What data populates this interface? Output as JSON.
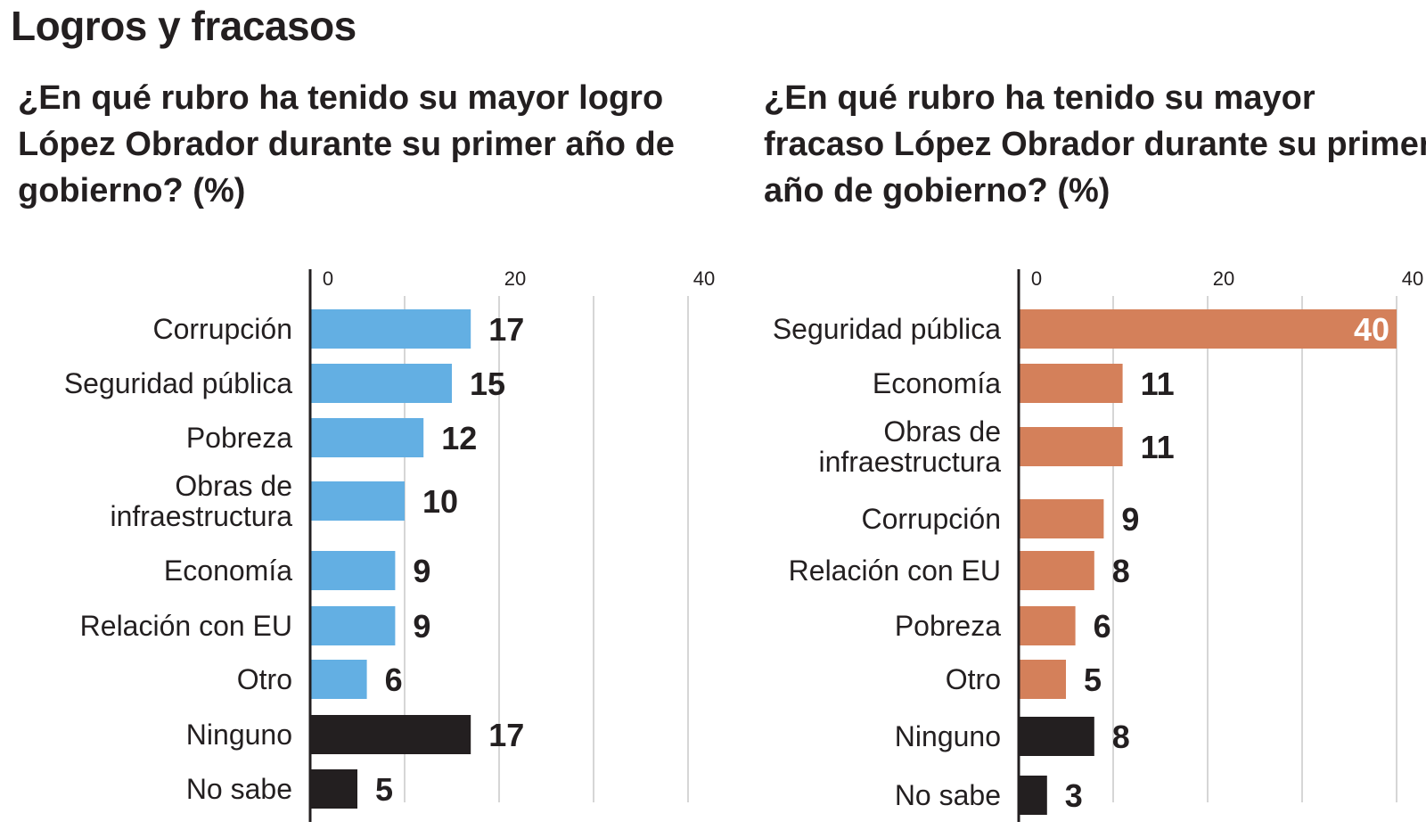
{
  "title": "Logros y fracasos",
  "colors": {
    "logro": "#63afe3",
    "fracaso": "#d4805a",
    "neutral": "#231f20",
    "grid": "#c8c8c8"
  },
  "chart_data": [
    {
      "type": "bar",
      "orientation": "horizontal",
      "title": "¿En qué rubro ha tenido su mayor logro López Obrador durante su primer año de gobierno? (%)",
      "xlim": [
        0,
        40
      ],
      "xticks": [
        "0",
        "20",
        "40"
      ],
      "grid": true,
      "categories": [
        [
          "Corrupción"
        ],
        [
          "Seguridad pública"
        ],
        [
          "Pobreza"
        ],
        [
          "Obras de",
          "infraestructura"
        ],
        [
          "Economía"
        ],
        [
          "Relación con EU"
        ],
        [
          "Otro"
        ],
        [
          "Ninguno"
        ],
        [
          "No sabe"
        ]
      ],
      "values": [
        17,
        15,
        12,
        10,
        9,
        9,
        6,
        17,
        5
      ],
      "bar_colors": [
        "logro",
        "logro",
        "logro",
        "logro",
        "logro",
        "logro",
        "logro",
        "neutral",
        "neutral"
      ]
    },
    {
      "type": "bar",
      "orientation": "horizontal",
      "title": "¿En qué rubro ha tenido su mayor fracaso López Obrador durante su primer año de gobierno?  (%)",
      "xlim": [
        0,
        40
      ],
      "xticks": [
        "0",
        "20",
        "40"
      ],
      "grid": true,
      "categories": [
        [
          "Seguridad pública"
        ],
        [
          "Economía"
        ],
        [
          "Obras de",
          "infraestructura"
        ],
        [
          "Corrupción"
        ],
        [
          "Relación con EU"
        ],
        [
          "Pobreza"
        ],
        [
          "Otro"
        ],
        [
          "Ninguno"
        ],
        [
          "No sabe"
        ]
      ],
      "values": [
        40,
        11,
        11,
        9,
        8,
        6,
        5,
        8,
        3
      ],
      "bar_colors": [
        "fracaso",
        "fracaso",
        "fracaso",
        "fracaso",
        "fracaso",
        "fracaso",
        "fracaso",
        "neutral",
        "neutral"
      ]
    }
  ]
}
